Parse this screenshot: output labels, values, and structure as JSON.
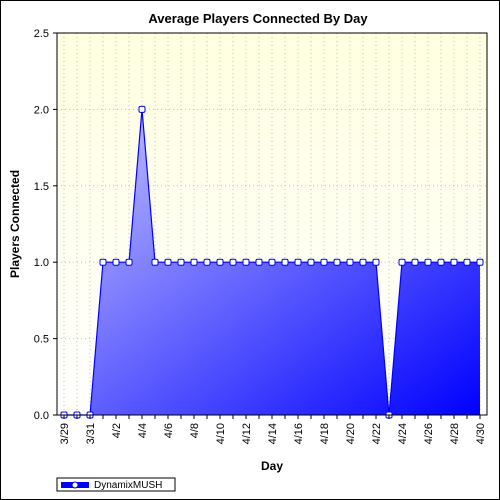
{
  "chart_data": {
    "type": "area",
    "title": "Average Players Connected By Day",
    "xlabel": "Day",
    "ylabel": "Players Connected",
    "ylim": [
      0,
      2.5
    ],
    "yticks": [
      "0.0",
      "0.5",
      "1.0",
      "1.5",
      "2.0",
      "2.5"
    ],
    "xtick_labels": [
      "3/29",
      "3/31",
      "4/2",
      "4/4",
      "4/6",
      "4/8",
      "4/10",
      "4/12",
      "4/14",
      "4/16",
      "4/18",
      "4/20",
      "4/22",
      "4/24",
      "4/26",
      "4/28",
      "4/30"
    ],
    "categories": [
      "3/29",
      "3/30",
      "3/31",
      "4/1",
      "4/2",
      "4/3",
      "4/4",
      "4/5",
      "4/6",
      "4/7",
      "4/8",
      "4/9",
      "4/10",
      "4/11",
      "4/12",
      "4/13",
      "4/14",
      "4/15",
      "4/16",
      "4/17",
      "4/18",
      "4/19",
      "4/20",
      "4/21",
      "4/22",
      "4/23",
      "4/24",
      "4/25",
      "4/26",
      "4/27",
      "4/28",
      "4/29",
      "4/30"
    ],
    "series": [
      {
        "name": "DynamixMUSH",
        "values": [
          0,
          0,
          0,
          1,
          1,
          1,
          2,
          1,
          1,
          1,
          1,
          1,
          1,
          1,
          1,
          1,
          1,
          1,
          1,
          1,
          1,
          1,
          1,
          1,
          1,
          0,
          1,
          1,
          1,
          1,
          1,
          1,
          1
        ]
      }
    ],
    "grid": true,
    "legend": "bottom-left",
    "colors": {
      "plot_background_top": "#ffffe0",
      "plot_background_bottom": "#ffffff",
      "fill_start": "#c8c8ff",
      "fill_end": "#0000ff",
      "line": "#0000ff",
      "marker_fill": "#ffffff",
      "grid": "#c0c0c0"
    }
  }
}
